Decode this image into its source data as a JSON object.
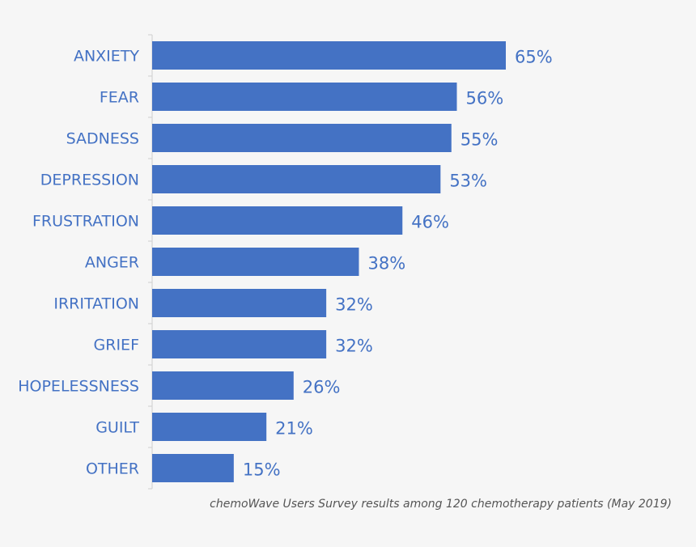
{
  "chart_data": {
    "type": "bar",
    "orientation": "horizontal",
    "categories": [
      "ANXIETY",
      "FEAR",
      "SADNESS",
      "DEPRESSION",
      "FRUSTRATION",
      "ANGER",
      "IRRITATION",
      "GRIEF",
      "HOPELESSNESS",
      "GUILT",
      "OTHER"
    ],
    "values": [
      65,
      56,
      55,
      53,
      46,
      38,
      32,
      32,
      26,
      21,
      15
    ],
    "value_labels": [
      "65%",
      "56%",
      "55%",
      "53%",
      "46%",
      "38%",
      "32%",
      "32%",
      "26%",
      "21%",
      "15%"
    ],
    "unit": "%",
    "title": "",
    "xlabel": "",
    "ylabel": "",
    "xlim": [
      0,
      65
    ],
    "grid": false,
    "bar_color": "#4472c4",
    "label_color": "#4472c4"
  },
  "caption": "chemoWave Users Survey results among 120 chemotherapy patients (May 2019)"
}
